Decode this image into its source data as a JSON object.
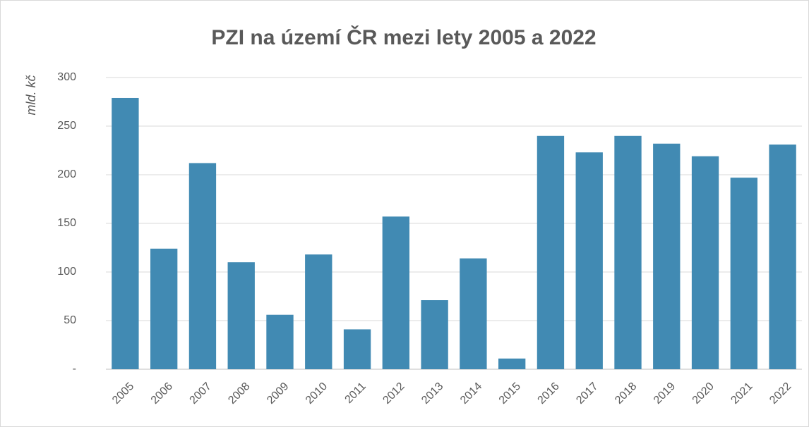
{
  "chart_data": {
    "type": "bar",
    "title": "PZI na území ČR mezi lety 2005 a 2022",
    "y_label": "mld. kč",
    "categories": [
      "2005",
      "2006",
      "2007",
      "2008",
      "2009",
      "2010",
      "2011",
      "2012",
      "2013",
      "2014",
      "2015",
      "2016",
      "2017",
      "2018",
      "2019",
      "2020",
      "2021",
      "2022"
    ],
    "values": [
      279,
      124,
      212,
      110,
      56,
      118,
      41,
      157,
      71,
      114,
      11,
      240,
      223,
      240,
      232,
      219,
      197,
      231
    ],
    "color": "#418ab3",
    "ylim": [
      0,
      300
    ],
    "yticks": [
      {
        "value": 0,
        "label": "-"
      },
      50,
      100,
      150,
      200,
      250,
      300
    ],
    "grid": true
  }
}
